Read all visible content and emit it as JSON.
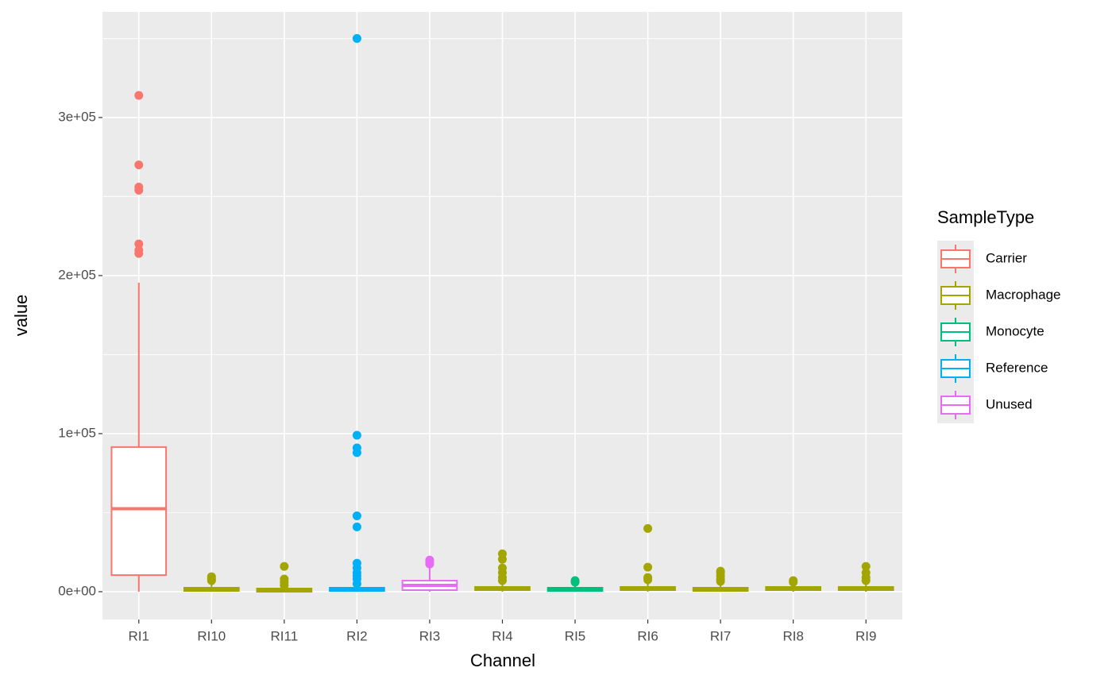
{
  "chart_data": {
    "type": "boxplot",
    "x_label": "Channel",
    "y_label": "value",
    "categories": [
      "RI1",
      "RI10",
      "RI11",
      "RI2",
      "RI3",
      "RI4",
      "RI5",
      "RI6",
      "RI7",
      "RI8",
      "RI9"
    ],
    "boxes": [
      {
        "group": "Carrier",
        "whislo": 0,
        "q1": 10500,
        "median": 52500,
        "q3": 91500,
        "whishi": 195500,
        "outliers": [
          314000,
          270000,
          256000,
          254000,
          220000,
          216000,
          214000
        ]
      },
      {
        "group": "Macrophage",
        "whislo": 0,
        "q1": 500,
        "median": 1500,
        "q3": 2500,
        "whishi": 5000,
        "outliers": [
          7000,
          8000,
          9500
        ]
      },
      {
        "group": "Macrophage",
        "whislo": 0,
        "q1": 0,
        "median": 1000,
        "q3": 2000,
        "whishi": 3500,
        "outliers": [
          4000,
          6000,
          8000,
          16000
        ]
      },
      {
        "group": "Reference",
        "whislo": 0,
        "q1": 500,
        "median": 1500,
        "q3": 2500,
        "whishi": 4500,
        "outliers": [
          5000,
          8000,
          10000,
          12000,
          15000,
          18000,
          41000,
          48000,
          88000,
          91000,
          99000,
          350000
        ]
      },
      {
        "group": "Unused",
        "whislo": 0,
        "q1": 1000,
        "median": 4000,
        "q3": 7000,
        "whishi": 15000,
        "outliers": [
          17500,
          19000,
          20000
        ]
      },
      {
        "group": "Macrophage",
        "whislo": 0,
        "q1": 1000,
        "median": 2000,
        "q3": 3000,
        "whishi": 6000,
        "outliers": [
          7000,
          9000,
          12000,
          15000,
          20500,
          24000
        ]
      },
      {
        "group": "Monocyte",
        "whislo": 0,
        "q1": 500,
        "median": 1500,
        "q3": 2500,
        "whishi": 5000,
        "outliers": [
          6000,
          7000
        ]
      },
      {
        "group": "Macrophage",
        "whislo": 0,
        "q1": 1000,
        "median": 2000,
        "q3": 3000,
        "whishi": 6000,
        "outliers": [
          7500,
          9000,
          15500,
          40000
        ]
      },
      {
        "group": "Macrophage",
        "whislo": 0,
        "q1": 500,
        "median": 1500,
        "q3": 2500,
        "whishi": 5000,
        "outliers": [
          6500,
          8000,
          10000,
          12000,
          13000
        ]
      },
      {
        "group": "Macrophage",
        "whislo": 0,
        "q1": 1000,
        "median": 2000,
        "q3": 3000,
        "whishi": 5000,
        "outliers": [
          6000,
          7000
        ]
      },
      {
        "group": "Macrophage",
        "whislo": 0,
        "q1": 1000,
        "median": 2000,
        "q3": 3000,
        "whishi": 6000,
        "outliers": [
          7000,
          9000,
          12000,
          16000
        ]
      }
    ],
    "legend": {
      "title": "SampleType",
      "position": "right",
      "entries": [
        {
          "name": "Carrier",
          "color": "#F8766D"
        },
        {
          "name": "Macrophage",
          "color": "#A3A500"
        },
        {
          "name": "Monocyte",
          "color": "#00BF7D"
        },
        {
          "name": "Reference",
          "color": "#00B0F6"
        },
        {
          "name": "Unused",
          "color": "#E76BF3"
        }
      ]
    },
    "ylim": [
      -17600,
      366800
    ],
    "yticks": [
      {
        "value": 0,
        "label": "0e+00"
      },
      {
        "value": 100000,
        "label": "1e+05"
      },
      {
        "value": 200000,
        "label": "2e+05"
      },
      {
        "value": 300000,
        "label": "3e+05"
      }
    ],
    "minor_yticks": [
      50000,
      150000,
      250000,
      350000
    ],
    "grid": true
  }
}
